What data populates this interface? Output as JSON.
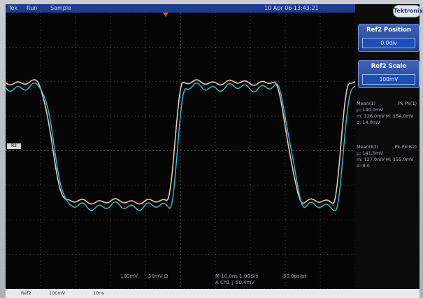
{
  "topbar": {
    "items": [
      "Tek",
      "Run",
      "Sample"
    ],
    "status": "10 Apr 06 13:43:21"
  },
  "brand": "Tektronix",
  "menu": {
    "buttons": [
      {
        "title": "Ref2 Position",
        "value": "0.0div"
      },
      {
        "title": "Ref2 Scale",
        "value": "100mV"
      }
    ]
  },
  "measurements": {
    "block1": {
      "header": "Mean(1)",
      "header_right": "Pk-Pk(1)",
      "rows": [
        "μ: 140.0mV",
        "m: 126.0mV   M: 154.0mV",
        "σ: 14.0mV"
      ]
    },
    "block2": {
      "header": "Mean(R2)",
      "header_right": "Pk-Pk(R2)",
      "rows": [
        "μ: 141.0mV",
        "m: 127.0mV   M: 155.0mV",
        "σ: 8.0"
      ]
    }
  },
  "markers": {
    "channel": "R2"
  },
  "readout": {
    "left1": "100mV",
    "left2": "50mV Ω",
    "timebase": "M 10.0ns 1.0GS/s",
    "trigger": "A Ch1 ∫ 50.4mV",
    "rate": "50.0ps/pt"
  },
  "bottom_strip": {
    "items": [
      "Ref2",
      "100mV",
      "10ns"
    ]
  },
  "colors": {
    "screen": "#050505",
    "grid": "#5a5a5a",
    "trace_live": "#2fc4d8",
    "trace_ref": "#e7c7b8",
    "menu_blue": "#2e4fa3"
  }
}
